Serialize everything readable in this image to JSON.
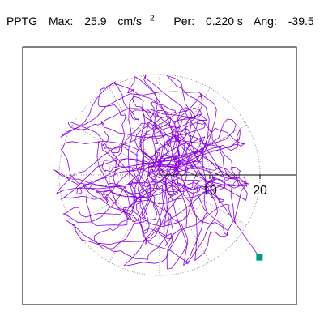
{
  "header": {
    "label": "PPTG",
    "max_label": "Max:",
    "max_value": "25.9",
    "max_unit": "cm/s",
    "max_unit_exp": "2",
    "per_label": "Per:",
    "per_value": "0.220 s",
    "ang_label": "Ang:",
    "ang_value": "-39.5"
  },
  "chart_data": {
    "type": "polar-trajectory",
    "units": "cm/s²",
    "radial_ticks": [
      10,
      20
    ],
    "radial_tick_labels": [
      "10",
      "20"
    ],
    "rings": [
      10,
      20
    ],
    "spokes_deg": [
      0,
      30,
      60,
      90,
      120,
      150,
      180,
      210,
      240,
      270,
      300,
      330
    ],
    "max_magnitude": 25.9,
    "max_angle_deg": -39.5,
    "endpoint": {
      "x": 19.9,
      "y": -16.4
    },
    "colors": {
      "trace": "#8b00e0",
      "marker": "#009b77",
      "grid": "#888888"
    }
  }
}
